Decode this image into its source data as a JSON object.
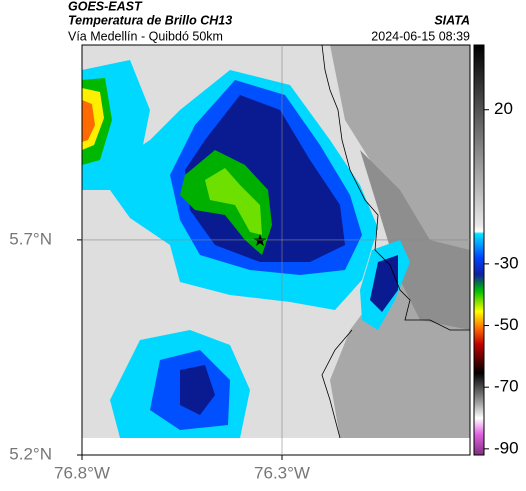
{
  "header": {
    "source": "GOES-EAST",
    "product": "Temperatura de Brillo CH13",
    "region": "Vía Medellín - Quibdó 50km",
    "agency": "SIATA",
    "timestamp": "2024-06-15 08:39"
  },
  "map": {
    "lon_range": [
      -76.8,
      -75.83
    ],
    "lat_range": [
      5.2,
      6.153
    ],
    "lon_ticks": [
      {
        "value": -76.8,
        "label": "76.8°W"
      },
      {
        "value": -76.3,
        "label": "76.3°W"
      }
    ],
    "lat_ticks": [
      {
        "value": 5.7,
        "label": "5.7°N"
      },
      {
        "value": 5.2,
        "label": "5.2°N"
      }
    ],
    "grid": true
  },
  "colorbar": {
    "range": [
      -92,
      41
    ],
    "ticks": [
      20,
      -30,
      -50,
      -70,
      -90
    ]
  }
}
